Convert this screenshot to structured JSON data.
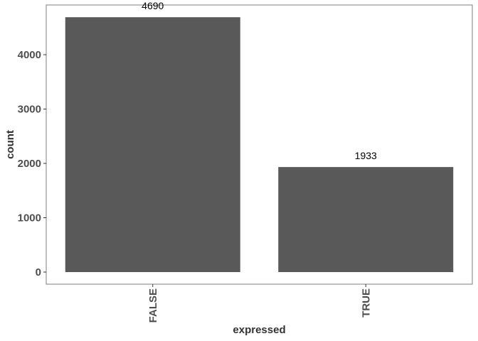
{
  "chart_data": {
    "type": "bar",
    "categories": [
      "FALSE",
      "TRUE"
    ],
    "values": [
      4690,
      1933
    ],
    "data_labels": [
      "4690",
      "1933"
    ],
    "xlabel": "expressed",
    "ylabel": "count",
    "ylim": [
      -234.5,
      4690
    ],
    "yticks": [
      0,
      1000,
      2000,
      3000,
      4000
    ],
    "ytick_labels": [
      "0",
      "1000",
      "2000",
      "3000",
      "4000"
    ],
    "bar_color": "#595959",
    "panel_border_color": "#7f7f7f",
    "background": "#ffffff",
    "grid": false,
    "legend": "none",
    "x_tick_rotation": "vertical"
  }
}
